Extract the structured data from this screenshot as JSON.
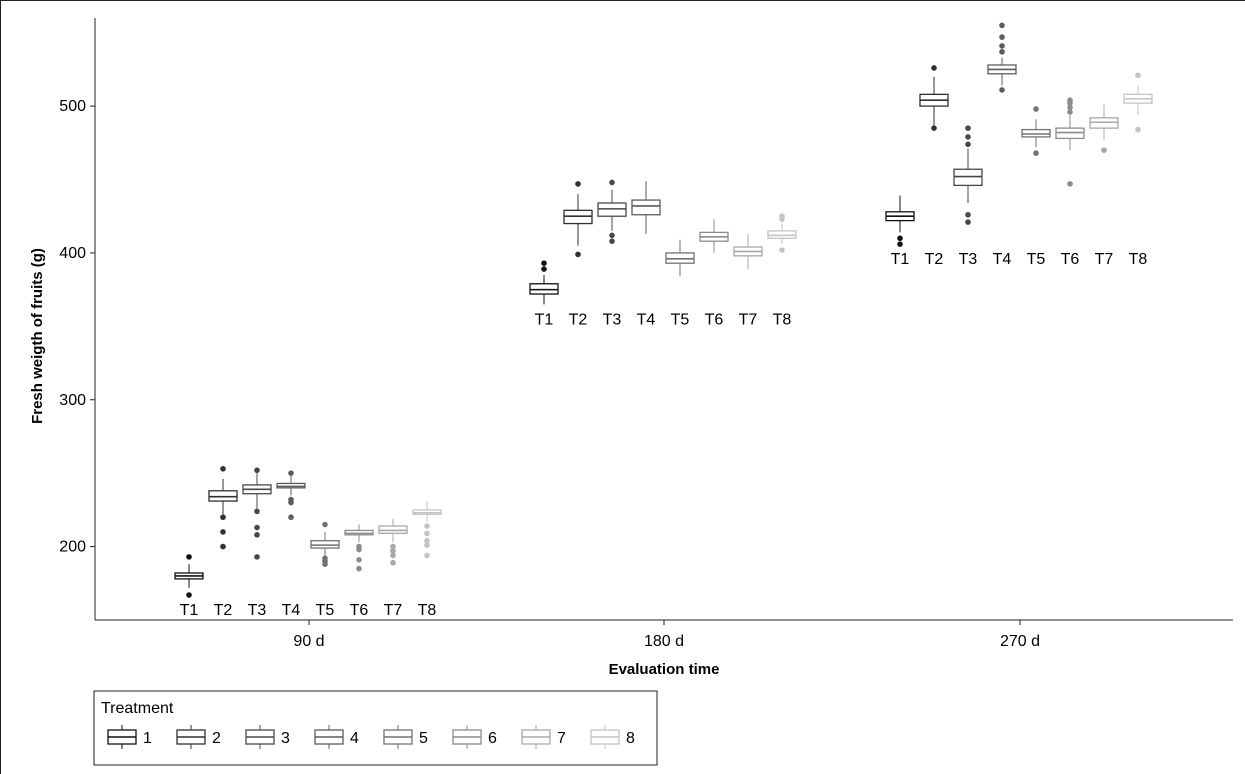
{
  "chart_data": {
    "type": "boxplot",
    "xlabel": "Evaluation time",
    "ylabel": "Fresh weigth of fruits (g)",
    "categories": [
      "90 d",
      "180 d",
      "270 d"
    ],
    "y_ticks": [
      200,
      300,
      400,
      500
    ],
    "ylim": [
      150,
      560
    ],
    "grid": false,
    "legend": {
      "title": "Treatment",
      "position": "bottom-left",
      "entries": [
        "1",
        "2",
        "3",
        "4",
        "5",
        "6",
        "7",
        "8"
      ]
    },
    "series_colors": [
      "#111111",
      "#303030",
      "#484848",
      "#5c5c5c",
      "#727272",
      "#8c8c8c",
      "#a8a8a8",
      "#c4c4c4"
    ],
    "group_labels": [
      "T1",
      "T2",
      "T3",
      "T4",
      "T5",
      "T6",
      "T7",
      "T8"
    ],
    "groups": [
      {
        "category": "90 d",
        "boxes": [
          {
            "treatment": "1",
            "label": "T1",
            "q1": 178,
            "median": 180,
            "q3": 182,
            "whisker_low": 172,
            "whisker_high": 188,
            "outliers": [
              167,
              193
            ]
          },
          {
            "treatment": "2",
            "label": "T2",
            "q1": 231,
            "median": 234,
            "q3": 238,
            "whisker_low": 222,
            "whisker_high": 246,
            "outliers": [
              200,
              210,
              220,
              253
            ]
          },
          {
            "treatment": "3",
            "label": "T3",
            "q1": 236,
            "median": 239,
            "q3": 242,
            "whisker_low": 226,
            "whisker_high": 250,
            "outliers": [
              193,
              208,
              213,
              224,
              252
            ]
          },
          {
            "treatment": "4",
            "label": "T4",
            "q1": 240,
            "median": 241,
            "q3": 243,
            "whisker_low": 235,
            "whisker_high": 248,
            "outliers": [
              220,
              230,
              232,
              250
            ]
          },
          {
            "treatment": "5",
            "label": "T5",
            "q1": 199,
            "median": 201,
            "q3": 204,
            "whisker_low": 193,
            "whisker_high": 210,
            "outliers": [
              188,
              190,
              192,
              215
            ]
          },
          {
            "treatment": "6",
            "label": "T6",
            "q1": 208,
            "median": 209,
            "q3": 211,
            "whisker_low": 203,
            "whisker_high": 215,
            "outliers": [
              185,
              191,
              198,
              200
            ]
          },
          {
            "treatment": "7",
            "label": "T7",
            "q1": 209,
            "median": 211,
            "q3": 214,
            "whisker_low": 203,
            "whisker_high": 219,
            "outliers": [
              189,
              194,
              197,
              200
            ]
          },
          {
            "treatment": "8",
            "label": "T8",
            "q1": 222,
            "median": 223,
            "q3": 225,
            "whisker_low": 217,
            "whisker_high": 231,
            "outliers": [
              194,
              201,
              204,
              209,
              214
            ]
          }
        ]
      },
      {
        "category": "180 d",
        "boxes": [
          {
            "treatment": "1",
            "label": "T1",
            "q1": 372,
            "median": 375,
            "q3": 379,
            "whisker_low": 365,
            "whisker_high": 385,
            "outliers": [
              389,
              393
            ]
          },
          {
            "treatment": "2",
            "label": "T2",
            "q1": 420,
            "median": 425,
            "q3": 429,
            "whisker_low": 405,
            "whisker_high": 440,
            "outliers": [
              399,
              447
            ]
          },
          {
            "treatment": "3",
            "label": "T3",
            "q1": 425,
            "median": 430,
            "q3": 434,
            "whisker_low": 415,
            "whisker_high": 443,
            "outliers": [
              408,
              412,
              448
            ]
          },
          {
            "treatment": "4",
            "label": "T4",
            "q1": 426,
            "median": 432,
            "q3": 436,
            "whisker_low": 413,
            "whisker_high": 449,
            "outliers": []
          },
          {
            "treatment": "5",
            "label": "T5",
            "q1": 393,
            "median": 396,
            "q3": 400,
            "whisker_low": 384,
            "whisker_high": 409,
            "outliers": []
          },
          {
            "treatment": "6",
            "label": "T6",
            "q1": 408,
            "median": 411,
            "q3": 414,
            "whisker_low": 400,
            "whisker_high": 423,
            "outliers": []
          },
          {
            "treatment": "7",
            "label": "T7",
            "q1": 398,
            "median": 401,
            "q3": 404,
            "whisker_low": 389,
            "whisker_high": 413,
            "outliers": []
          },
          {
            "treatment": "8",
            "label": "T8",
            "q1": 410,
            "median": 412,
            "q3": 415,
            "whisker_low": 406,
            "whisker_high": 420,
            "outliers": [
              402,
              423,
              425
            ]
          }
        ]
      },
      {
        "category": "270 d",
        "boxes": [
          {
            "treatment": "1",
            "label": "T1",
            "q1": 422,
            "median": 425,
            "q3": 428,
            "whisker_low": 414,
            "whisker_high": 439,
            "outliers": [
              406,
              410
            ]
          },
          {
            "treatment": "2",
            "label": "T2",
            "q1": 500,
            "median": 504,
            "q3": 508,
            "whisker_low": 486,
            "whisker_high": 520,
            "outliers": [
              485,
              526
            ]
          },
          {
            "treatment": "3",
            "label": "T3",
            "q1": 446,
            "median": 452,
            "q3": 457,
            "whisker_low": 434,
            "whisker_high": 471,
            "outliers": [
              421,
              426,
              474,
              479,
              485
            ]
          },
          {
            "treatment": "4",
            "label": "T4",
            "q1": 522,
            "median": 525,
            "q3": 528,
            "whisker_low": 514,
            "whisker_high": 533,
            "outliers": [
              511,
              537,
              541,
              547,
              555
            ]
          },
          {
            "treatment": "5",
            "label": "T5",
            "q1": 479,
            "median": 481,
            "q3": 484,
            "whisker_low": 472,
            "whisker_high": 491,
            "outliers": [
              468,
              498
            ]
          },
          {
            "treatment": "6",
            "label": "T6",
            "q1": 478,
            "median": 482,
            "q3": 485,
            "whisker_low": 470,
            "whisker_high": 494,
            "outliers": [
              447,
              496,
              499,
              502,
              504
            ]
          },
          {
            "treatment": "7",
            "label": "T7",
            "q1": 485,
            "median": 489,
            "q3": 492,
            "whisker_low": 477,
            "whisker_high": 501,
            "outliers": [
              470
            ]
          },
          {
            "treatment": "8",
            "label": "T8",
            "q1": 502,
            "median": 505,
            "q3": 508,
            "whisker_low": 494,
            "whisker_high": 514,
            "outliers": [
              484,
              521
            ]
          }
        ]
      }
    ]
  }
}
